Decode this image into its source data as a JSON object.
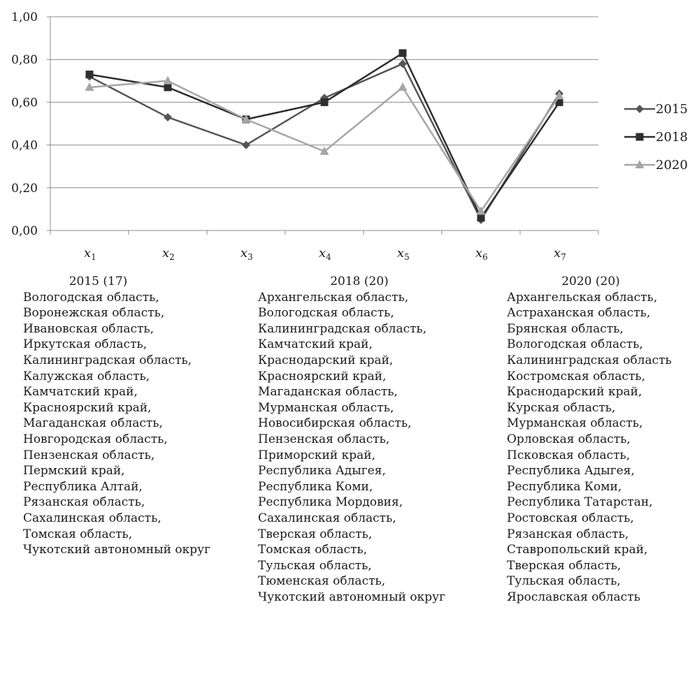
{
  "chart_data": {
    "type": "line",
    "categories": [
      "x1",
      "x2",
      "x3",
      "x4",
      "x5",
      "x6",
      "x7"
    ],
    "x_tick_labels": [
      {
        "base": "x",
        "sub": "1"
      },
      {
        "base": "x",
        "sub": "2"
      },
      {
        "base": "x",
        "sub": "3"
      },
      {
        "base": "x",
        "sub": "4"
      },
      {
        "base": "x",
        "sub": "5"
      },
      {
        "base": "x",
        "sub": "6"
      },
      {
        "base": "x",
        "sub": "7"
      }
    ],
    "y_ticks": [
      "0,00",
      "0,20",
      "0,40",
      "0,60",
      "0,80",
      "1,00"
    ],
    "ylim": [
      0,
      1
    ],
    "grid": true,
    "legend_position": "right",
    "series": [
      {
        "name": "2015",
        "marker": "diamond",
        "color": "#555555",
        "values": [
          0.72,
          0.53,
          0.4,
          0.62,
          0.78,
          0.05,
          0.64
        ]
      },
      {
        "name": "2018",
        "marker": "square",
        "color": "#2e2e2e",
        "values": [
          0.73,
          0.67,
          0.52,
          0.6,
          0.83,
          0.06,
          0.6
        ]
      },
      {
        "name": "2020",
        "marker": "triangle",
        "color": "#a6a6a6",
        "values": [
          0.67,
          0.7,
          0.52,
          0.37,
          0.67,
          0.09,
          0.63
        ]
      }
    ]
  },
  "lists": [
    {
      "heading": "2015 (17)",
      "items": [
        "Вологодская область,",
        "Воронежская область,",
        "Ивановская область,",
        "Иркутская область,",
        "Калининградская область,",
        "Калужская область,",
        "Камчатский край,",
        "Красноярский край,",
        "Магаданская область,",
        "Новгородская область,",
        "Пензенская область,",
        "Пермский край,",
        "Республика Алтай,",
        "Рязанская область,",
        "Сахалинская область,",
        "Томская область,",
        "Чукотский автономный округ"
      ]
    },
    {
      "heading": "2018 (20)",
      "items": [
        "Архангельская область,",
        "Вологодская область,",
        "Калининградская область,",
        "Камчатский край,",
        "Краснодарский край,",
        "Красноярский край,",
        "Магаданская область,",
        "Мурманская область,",
        "Новосибирская область,",
        "Пензенская область,",
        "Приморский край,",
        "Республика Адыгея,",
        "Республика Коми,",
        "Республика Мордовия,",
        "Сахалинская область,",
        "Тверская область,",
        "Томская область,",
        "Тульская область,",
        "Тюменская область,",
        "Чукотский автономный округ"
      ]
    },
    {
      "heading": "2020 (20)",
      "items": [
        "Архангельская область,",
        "Астраханская область,",
        "Брянская область,",
        "Вологодская область,",
        "Калининградская область",
        "Костромская область,",
        "Краснодарский край,",
        "Курская область,",
        "Мурманская область,",
        "Орловская область,",
        "Псковская область,",
        "Республика Адыгея,",
        "Республика Коми,",
        "Республика Татарстан,",
        "Ростовская область,",
        "Рязанская область,",
        "Ставропольский край,",
        "Тверская область,",
        "Тульская область,",
        "Ярославская область"
      ]
    }
  ]
}
